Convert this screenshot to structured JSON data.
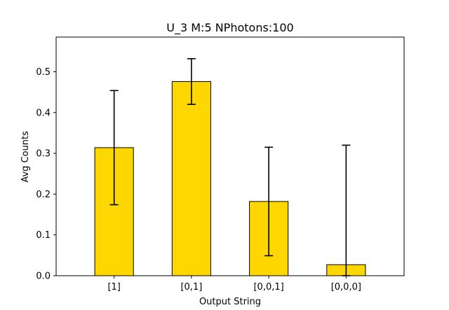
{
  "chart_data": {
    "type": "bar",
    "title": "U_3 M:5 NPhotons:100",
    "xlabel": "Output String",
    "ylabel": "Avg Counts",
    "categories": [
      "[1]",
      "[0,1]",
      "[0,0,1]",
      "[0,0,0]"
    ],
    "values": [
      0.314,
      0.476,
      0.182,
      0.027
    ],
    "error_low": [
      0.174,
      0.42,
      0.049,
      0.0
    ],
    "error_high": [
      0.454,
      0.532,
      0.315,
      0.32
    ],
    "ylim": [
      0,
      0.585
    ],
    "yticks": [
      0.0,
      0.1,
      0.2,
      0.3,
      0.4,
      0.5
    ],
    "ytick_labels": [
      "0.0",
      "0.1",
      "0.2",
      "0.3",
      "0.4",
      "0.5"
    ],
    "grid": false,
    "bar_color": "#ffd700",
    "edge_color": "#000000"
  }
}
